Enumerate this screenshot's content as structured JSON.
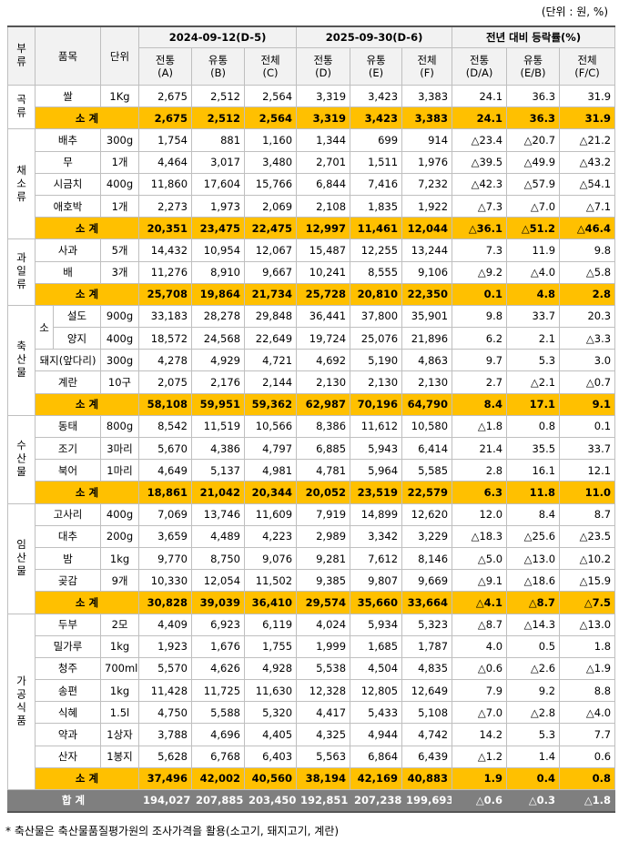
{
  "unit_note": "(단위 : 원, %)",
  "table": {
    "header": {
      "category": "부류",
      "item": "품목",
      "unit": "단위",
      "periods": [
        "2024-09-12(D-5)",
        "2025-09-30(D-6)",
        "전년 대비 등락률(%)"
      ],
      "columns": [
        "전통\n(A)",
        "유통\n(B)",
        "전체\n(C)",
        "전통\n(D)",
        "유통\n(E)",
        "전체\n(F)",
        "전통\n(D/A)",
        "유통\n(E/B)",
        "전체\n(F/C)"
      ]
    },
    "groups": [
      {
        "name": "곡류",
        "rows": [
          {
            "item": "쌀",
            "unit": "1Kg",
            "values": [
              "2,675",
              "2,512",
              "2,564",
              "3,319",
              "3,423",
              "3,383",
              "24.1",
              "36.3",
              "31.9"
            ]
          }
        ],
        "subtotal": {
          "label": "소 계",
          "values": [
            "2,675",
            "2,512",
            "2,564",
            "3,319",
            "3,423",
            "3,383",
            "24.1",
            "36.3",
            "31.9"
          ]
        }
      },
      {
        "name": "채소류",
        "rows": [
          {
            "item": "배추",
            "unit": "300g",
            "values": [
              "1,754",
              "881",
              "1,160",
              "1,344",
              "699",
              "914",
              "△23.4",
              "△20.7",
              "△21.2"
            ]
          },
          {
            "item": "무",
            "unit": "1개",
            "values": [
              "4,464",
              "3,017",
              "3,480",
              "2,701",
              "1,511",
              "1,976",
              "△39.5",
              "△49.9",
              "△43.2"
            ]
          },
          {
            "item": "시금치",
            "unit": "400g",
            "values": [
              "11,860",
              "17,604",
              "15,766",
              "6,844",
              "7,416",
              "7,232",
              "△42.3",
              "△57.9",
              "△54.1"
            ]
          },
          {
            "item": "애호박",
            "unit": "1개",
            "values": [
              "2,273",
              "1,973",
              "2,069",
              "2,108",
              "1,835",
              "1,922",
              "△7.3",
              "△7.0",
              "△7.1"
            ]
          }
        ],
        "subtotal": {
          "label": "소 계",
          "values": [
            "20,351",
            "23,475",
            "22,475",
            "12,997",
            "11,461",
            "12,044",
            "△36.1",
            "△51.2",
            "△46.4"
          ]
        }
      },
      {
        "name": "과일류",
        "rows": [
          {
            "item": "사과",
            "unit": "5개",
            "values": [
              "14,432",
              "10,954",
              "12,067",
              "15,487",
              "12,255",
              "13,244",
              "7.3",
              "11.9",
              "9.8"
            ]
          },
          {
            "item": "배",
            "unit": "3개",
            "values": [
              "11,276",
              "8,910",
              "9,667",
              "10,241",
              "8,555",
              "9,106",
              "△9.2",
              "△4.0",
              "△5.8"
            ]
          }
        ],
        "subtotal": {
          "label": "소 계",
          "values": [
            "25,708",
            "19,864",
            "21,734",
            "25,728",
            "20,810",
            "22,350",
            "0.1",
            "4.8",
            "2.8"
          ]
        }
      },
      {
        "name": "축산물",
        "rows": [
          {
            "label": "소",
            "rows": [
              {
                "item": "설도",
                "unit": "900g",
                "values": [
                  "33,183",
                  "28,278",
                  "29,848",
                  "36,441",
                  "37,800",
                  "35,901",
                  "9.8",
                  "33.7",
                  "20.3"
                ]
              },
              {
                "item": "양지",
                "unit": "400g",
                "values": [
                  "18,572",
                  "24,568",
                  "22,649",
                  "19,724",
                  "25,076",
                  "21,896",
                  "6.2",
                  "2.1",
                  "△3.3"
                ]
              }
            ]
          },
          {
            "item": "돼지(앞다리)",
            "unit": "300g",
            "values": [
              "4,278",
              "4,929",
              "4,721",
              "4,692",
              "5,190",
              "4,863",
              "9.7",
              "5.3",
              "3.0"
            ]
          },
          {
            "item": "계란",
            "unit": "10구",
            "values": [
              "2,075",
              "2,176",
              "2,144",
              "2,130",
              "2,130",
              "2,130",
              "2.7",
              "△2.1",
              "△0.7"
            ]
          }
        ],
        "subtotal": {
          "label": "소 계",
          "values": [
            "58,108",
            "59,951",
            "59,362",
            "62,987",
            "70,196",
            "64,790",
            "8.4",
            "17.1",
            "9.1"
          ]
        }
      },
      {
        "name": "수산물",
        "rows": [
          {
            "item": "동태",
            "unit": "800g",
            "values": [
              "8,542",
              "11,519",
              "10,566",
              "8,386",
              "11,612",
              "10,580",
              "△1.8",
              "0.8",
              "0.1"
            ]
          },
          {
            "item": "조기",
            "unit": "3마리",
            "values": [
              "5,670",
              "4,386",
              "4,797",
              "6,885",
              "5,943",
              "6,414",
              "21.4",
              "35.5",
              "33.7"
            ]
          },
          {
            "item": "북어",
            "unit": "1마리",
            "values": [
              "4,649",
              "5,137",
              "4,981",
              "4,781",
              "5,964",
              "5,585",
              "2.8",
              "16.1",
              "12.1"
            ]
          }
        ],
        "subtotal": {
          "label": "소 계",
          "values": [
            "18,861",
            "21,042",
            "20,344",
            "20,052",
            "23,519",
            "22,579",
            "6.3",
            "11.8",
            "11.0"
          ]
        }
      },
      {
        "name": "임산물",
        "rows": [
          {
            "item": "고사리",
            "unit": "400g",
            "values": [
              "7,069",
              "13,746",
              "11,609",
              "7,919",
              "14,899",
              "12,620",
              "12.0",
              "8.4",
              "8.7"
            ]
          },
          {
            "item": "대추",
            "unit": "200g",
            "values": [
              "3,659",
              "4,489",
              "4,223",
              "2,989",
              "3,342",
              "3,229",
              "△18.3",
              "△25.6",
              "△23.5"
            ]
          },
          {
            "item": "밤",
            "unit": "1kg",
            "values": [
              "9,770",
              "8,750",
              "9,076",
              "9,281",
              "7,612",
              "8,146",
              "△5.0",
              "△13.0",
              "△10.2"
            ]
          },
          {
            "item": "곶감",
            "unit": "9개",
            "values": [
              "10,330",
              "12,054",
              "11,502",
              "9,385",
              "9,807",
              "9,669",
              "△9.1",
              "△18.6",
              "△15.9"
            ]
          }
        ],
        "subtotal": {
          "label": "소 계",
          "values": [
            "30,828",
            "39,039",
            "36,410",
            "29,574",
            "35,660",
            "33,664",
            "△4.1",
            "△8.7",
            "△7.5"
          ]
        }
      },
      {
        "name": "가공식품",
        "rows": [
          {
            "item": "두부",
            "unit": "2모",
            "values": [
              "4,409",
              "6,923",
              "6,119",
              "4,024",
              "5,934",
              "5,323",
              "△8.7",
              "△14.3",
              "△13.0"
            ]
          },
          {
            "item": "밀가루",
            "unit": "1kg",
            "values": [
              "1,923",
              "1,676",
              "1,755",
              "1,999",
              "1,685",
              "1,787",
              "4.0",
              "0.5",
              "1.8"
            ]
          },
          {
            "item": "청주",
            "unit": "700ml",
            "values": [
              "5,570",
              "4,626",
              "4,928",
              "5,538",
              "4,504",
              "4,835",
              "△0.6",
              "△2.6",
              "△1.9"
            ]
          },
          {
            "item": "송편",
            "unit": "1kg",
            "values": [
              "11,428",
              "11,725",
              "11,630",
              "12,328",
              "12,805",
              "12,649",
              "7.9",
              "9.2",
              "8.8"
            ]
          },
          {
            "item": "식혜",
            "unit": "1.5l",
            "values": [
              "4,750",
              "5,588",
              "5,320",
              "4,417",
              "5,433",
              "5,108",
              "△7.0",
              "△2.8",
              "△4.0"
            ]
          },
          {
            "item": "약과",
            "unit": "1상자",
            "values": [
              "3,788",
              "4,696",
              "4,405",
              "4,325",
              "4,944",
              "4,742",
              "14.2",
              "5.3",
              "7.7"
            ]
          },
          {
            "item": "산자",
            "unit": "1봉지",
            "values": [
              "5,628",
              "6,768",
              "6,403",
              "5,563",
              "6,864",
              "6,439",
              "△1.2",
              "1.4",
              "0.6"
            ]
          }
        ],
        "subtotal": {
          "label": "소 계",
          "values": [
            "37,496",
            "42,002",
            "40,560",
            "38,194",
            "42,169",
            "40,883",
            "1.9",
            "0.4",
            "0.8"
          ]
        }
      }
    ],
    "total": {
      "label": "합 계",
      "values": [
        "194,027",
        "207,885",
        "203,450",
        "192,851",
        "207,238",
        "199,693",
        "△0.6",
        "△0.3",
        "△1.8"
      ]
    }
  },
  "footnote": "* 축산물은 축산물품질평가원의 조사가격을 활용(소고기, 돼지고기, 계란)"
}
